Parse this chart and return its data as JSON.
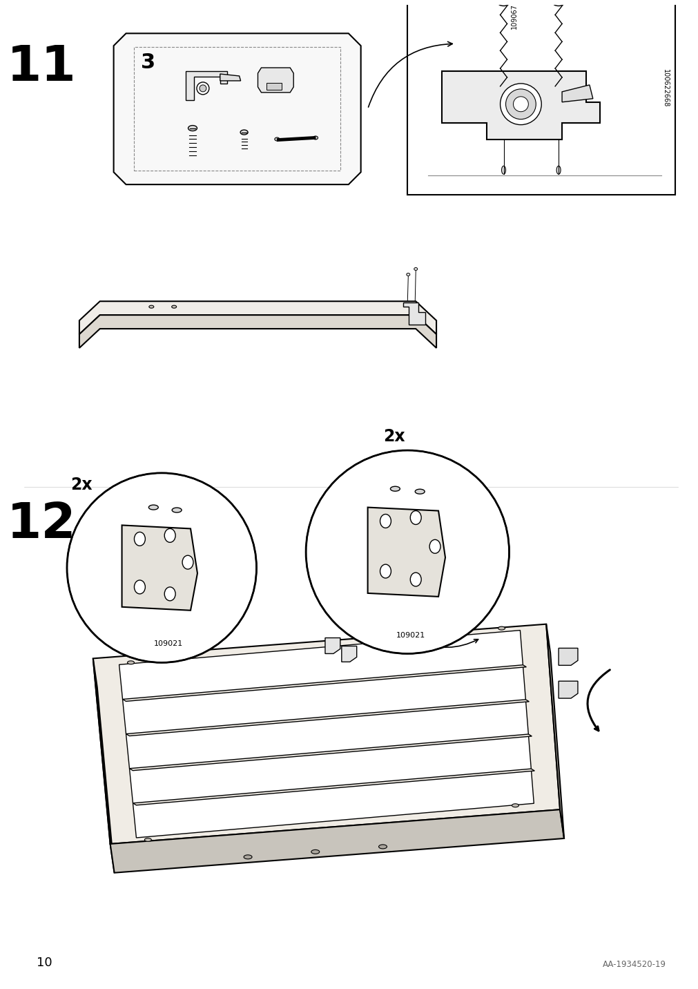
{
  "bg_color": "#ffffff",
  "line_color": "#000000",
  "light_line_color": "#555555",
  "page_number": "10",
  "doc_number": "AA-1934520-19",
  "step11_label": "11",
  "step12_label": "12",
  "step11_parts_count": "3",
  "part_id_1": "109067",
  "part_id_2": "100622668",
  "screw_id_1": "109021",
  "screw_id_2": "109021",
  "qty_2x_left": "2x",
  "qty_2x_right": "2x"
}
